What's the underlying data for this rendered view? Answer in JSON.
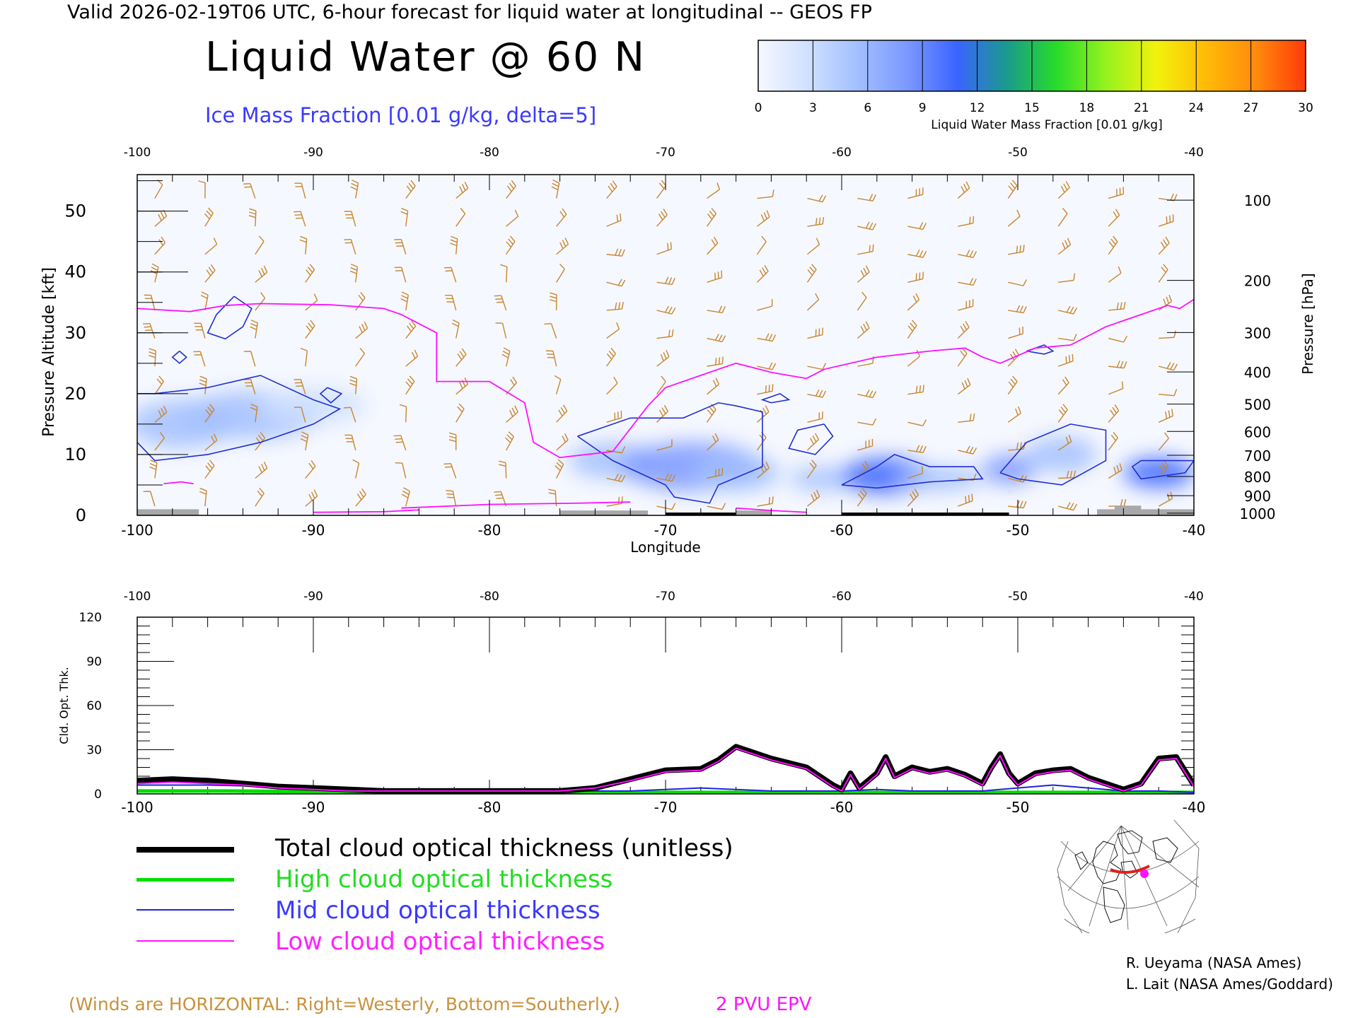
{
  "title": "Valid 2026-02-19T06 UTC, 6-hour forecast for liquid water at longitudinal -- GEOS FP",
  "heading": "Liquid Water @ 60 N",
  "subheading": "Ice Mass Fraction [0.01 g/kg, delta=5]",
  "colorbar": {
    "label": "Liquid Water Mass Fraction [0.01 g/kg]",
    "ticks": [
      "0",
      "3",
      "6",
      "9",
      "12",
      "15",
      "18",
      "21",
      "24",
      "27",
      "30"
    ],
    "colors": [
      "#f6f8ff",
      "#cfe0ff",
      "#a2c0ff",
      "#7b98ff",
      "#3a64ff",
      "#1a9a8c",
      "#28dc2a",
      "#96f21e",
      "#f2f20c",
      "#ffbb06",
      "#ff8a0e",
      "#ff3a08"
    ]
  },
  "colors": {
    "wind_barb": "#c8862e",
    "ice_contour": "#1f2fd0",
    "epv": "#ff10ff",
    "terrain": "#a8a8a8"
  },
  "chart_data": [
    {
      "type": "heatmap",
      "x_ticks": [
        "-100",
        "-90",
        "-80",
        "-70",
        "-60",
        "-50",
        "-40"
      ],
      "xlim": [
        -100,
        -40
      ],
      "xlabel": "Longitude",
      "ylabel_left": "Pressure Altitude [kft]",
      "y_left_ticks": [
        "0",
        "10",
        "20",
        "30",
        "40",
        "50"
      ],
      "ylim_kft": [
        0,
        56
      ],
      "ylabel_right": "Pressure [hPa]",
      "y_right_ticks": [
        "100",
        "200",
        "300",
        "400",
        "500",
        "600",
        "700",
        "800",
        "900",
        "1000"
      ],
      "liquid_water_blobs": [
        {
          "lon": -97.5,
          "kft": 15,
          "w": 3,
          "h": 4,
          "v": 4
        },
        {
          "lon": -93.5,
          "kft": 16.5,
          "w": 4,
          "h": 4,
          "v": 3
        },
        {
          "lon": -90,
          "kft": 18,
          "w": 3,
          "h": 3,
          "v": 2
        },
        {
          "lon": -73,
          "kft": 9,
          "w": 2.5,
          "h": 3,
          "v": 4
        },
        {
          "lon": -68.5,
          "kft": 8,
          "w": 4,
          "h": 4,
          "v": 6
        },
        {
          "lon": -66,
          "kft": 7,
          "w": 2.5,
          "h": 3,
          "v": 5
        },
        {
          "lon": -61,
          "kft": 6,
          "w": 2,
          "h": 2,
          "v": 3
        },
        {
          "lon": -57.5,
          "kft": 6.5,
          "w": 2.5,
          "h": 3,
          "v": 9
        },
        {
          "lon": -54.5,
          "kft": 6,
          "w": 2.5,
          "h": 2,
          "v": 5
        },
        {
          "lon": -50.5,
          "kft": 7.5,
          "w": 1.5,
          "h": 2.5,
          "v": 7
        },
        {
          "lon": -47.5,
          "kft": 10,
          "w": 2,
          "h": 3,
          "v": 5
        },
        {
          "lon": -42,
          "kft": 7,
          "w": 2,
          "h": 2.5,
          "v": 9
        }
      ],
      "ice_contours": [
        [
          [
            -100,
            12
          ],
          [
            -99,
            9
          ],
          [
            -96,
            10
          ],
          [
            -93,
            12
          ],
          [
            -90,
            15
          ],
          [
            -88.5,
            17.5
          ],
          [
            -90,
            19
          ],
          [
            -93,
            23
          ],
          [
            -96,
            21
          ],
          [
            -99,
            20
          ],
          [
            -100,
            20
          ]
        ],
        [
          [
            -94.5,
            36
          ],
          [
            -95.5,
            33
          ],
          [
            -96,
            30
          ],
          [
            -95,
            29
          ],
          [
            -94,
            31
          ],
          [
            -93.5,
            34
          ],
          [
            -94.5,
            36
          ]
        ],
        [
          [
            -97.6,
            27
          ],
          [
            -97.2,
            26
          ],
          [
            -97.6,
            25
          ],
          [
            -98,
            26
          ],
          [
            -97.6,
            27
          ]
        ],
        [
          [
            -89.2,
            21
          ],
          [
            -88.4,
            20
          ],
          [
            -89,
            18.5
          ],
          [
            -89.6,
            20
          ],
          [
            -89.2,
            21
          ]
        ],
        [
          [
            -75,
            13
          ],
          [
            -72,
            16
          ],
          [
            -69,
            16
          ],
          [
            -67,
            18.5
          ],
          [
            -66,
            18
          ],
          [
            -64.5,
            17
          ],
          [
            -64.5,
            8
          ],
          [
            -67,
            5
          ],
          [
            -67.5,
            2
          ],
          [
            -69.5,
            3
          ],
          [
            -70,
            5
          ],
          [
            -73,
            9
          ],
          [
            -75,
            13
          ]
        ],
        [
          [
            -64,
            18.5
          ],
          [
            -63,
            19
          ],
          [
            -63.5,
            20
          ],
          [
            -64.5,
            19
          ],
          [
            -64,
            18.5
          ]
        ],
        [
          [
            -61,
            15
          ],
          [
            -62.5,
            14
          ],
          [
            -63,
            11
          ],
          [
            -61.5,
            10
          ],
          [
            -60.5,
            13
          ],
          [
            -61,
            15
          ]
        ],
        [
          [
            -60,
            5
          ],
          [
            -58,
            8
          ],
          [
            -57,
            10
          ],
          [
            -55,
            8
          ],
          [
            -52.5,
            8
          ],
          [
            -52,
            6
          ],
          [
            -55,
            5.5
          ],
          [
            -58,
            4.5
          ],
          [
            -60,
            5
          ]
        ],
        [
          [
            -51,
            7
          ],
          [
            -49.5,
            12
          ],
          [
            -47,
            15
          ],
          [
            -45,
            14
          ],
          [
            -45,
            9
          ],
          [
            -47.5,
            5
          ],
          [
            -50,
            6
          ],
          [
            -51,
            7
          ]
        ],
        [
          [
            -49.5,
            27
          ],
          [
            -48.5,
            26.5
          ],
          [
            -48,
            27
          ],
          [
            -48.5,
            28
          ],
          [
            -49.5,
            27
          ]
        ],
        [
          [
            -43,
            9
          ],
          [
            -40,
            9
          ],
          [
            -40.5,
            7
          ],
          [
            -43,
            6
          ],
          [
            -43.5,
            8
          ],
          [
            -43,
            9
          ]
        ]
      ],
      "epv_2pvu": [
        [
          -100,
          34
        ],
        [
          -97,
          33.5
        ],
        [
          -95,
          34.5
        ],
        [
          -93,
          34.8
        ],
        [
          -89,
          34.6
        ],
        [
          -86,
          34
        ],
        [
          -85,
          33
        ],
        [
          -83,
          30
        ],
        [
          -83,
          22
        ],
        [
          -80,
          22
        ],
        [
          -78,
          18.5
        ],
        [
          -77.5,
          12
        ],
        [
          -76,
          9.5
        ],
        [
          -73,
          10.5
        ],
        [
          -71,
          18
        ],
        [
          -70,
          21
        ],
        [
          -68,
          23
        ],
        [
          -66,
          25
        ],
        [
          -64,
          23.5
        ],
        [
          -62,
          22.5
        ],
        [
          -61,
          24
        ],
        [
          -58,
          26
        ],
        [
          -55,
          27
        ],
        [
          -53,
          27.5
        ],
        [
          -52,
          26
        ],
        [
          -51,
          25
        ],
        [
          -49,
          27.5
        ],
        [
          -47,
          28
        ],
        [
          -45,
          31
        ],
        [
          -43,
          33
        ],
        [
          -41.5,
          34.5
        ],
        [
          -40.8,
          34
        ],
        [
          -40,
          35.5
        ]
      ],
      "epv_low": [
        [
          [
            -98.5,
            5.2
          ],
          [
            -97.5,
            5.5
          ],
          [
            -96.8,
            5.2
          ]
        ],
        [
          [
            -90,
            0.5
          ],
          [
            -86,
            0.6
          ],
          [
            -84,
            0.9
          ]
        ],
        [
          [
            -85,
            1.2
          ],
          [
            -80,
            1.8
          ],
          [
            -75,
            2
          ],
          [
            -72,
            2.2
          ]
        ],
        [
          [
            -66,
            1.2
          ],
          [
            -64,
            0.8
          ],
          [
            -62,
            0.5
          ]
        ]
      ],
      "terrain": [
        [
          [
            -100,
            0
          ],
          [
            -100,
            1
          ],
          [
            -96.5,
            1
          ],
          [
            -96.5,
            0
          ]
        ],
        [
          [
            -76,
            0
          ],
          [
            -76,
            0.8
          ],
          [
            -71,
            0.8
          ],
          [
            -71,
            0
          ]
        ],
        [
          [
            -66,
            0
          ],
          [
            -66,
            0.8
          ],
          [
            -64,
            0.8
          ],
          [
            -64,
            0
          ]
        ],
        [
          [
            -45.5,
            0
          ],
          [
            -45.5,
            1
          ],
          [
            -44.5,
            1
          ],
          [
            -44.5,
            1.6
          ],
          [
            -43,
            1.6
          ],
          [
            -43,
            1
          ],
          [
            -40,
            1
          ],
          [
            -40,
            0
          ]
        ]
      ]
    },
    {
      "type": "line",
      "x_ticks": [
        "-100",
        "-90",
        "-80",
        "-70",
        "-60",
        "-50",
        "-40"
      ],
      "xlim": [
        -100,
        -40
      ],
      "xlabel": "Longitude",
      "ylabel": "Cld. Opt. Thk.",
      "y_ticks": [
        "0",
        "30",
        "60",
        "90",
        "120"
      ],
      "ylim": [
        0,
        120
      ],
      "series": [
        {
          "name": "Total cloud optical thickness (unitless)",
          "color": "#000000",
          "x": [
            -100,
            -98,
            -96,
            -94,
            -92,
            -90,
            -88,
            -86,
            -84,
            -82,
            -80,
            -78,
            -76,
            -74,
            -72,
            -70,
            -68,
            -67,
            -66,
            -64,
            -62,
            -60.5,
            -60,
            -59.5,
            -59,
            -58,
            -57.5,
            -57,
            -56,
            -55,
            -54,
            -53,
            -52,
            -51.5,
            -51,
            -50.5,
            -50,
            -49,
            -48,
            -47,
            -46,
            -45,
            -44,
            -43,
            -42,
            -41,
            -40
          ],
          "y": [
            9,
            10,
            9,
            7,
            5,
            4,
            3,
            2,
            2,
            2,
            2,
            2,
            2,
            4,
            10,
            16,
            17,
            23,
            32,
            24,
            18,
            6,
            3,
            14,
            4,
            14,
            25,
            12,
            18,
            15,
            17,
            13,
            7,
            18,
            27,
            14,
            7,
            14,
            16,
            17,
            11,
            7,
            3,
            7,
            24,
            25,
            6
          ]
        },
        {
          "name": "High cloud optical thickness",
          "color": "#00dd00",
          "x": [
            -100,
            -95,
            -90,
            -80,
            -70,
            -60,
            -50,
            -40
          ],
          "y": [
            2,
            2,
            1.5,
            1,
            1,
            1,
            1,
            1
          ]
        },
        {
          "name": "Mid cloud optical thickness",
          "color": "#2222dd",
          "x": [
            -100,
            -96,
            -92,
            -88,
            -84,
            -80,
            -76,
            -72,
            -70,
            -68,
            -66,
            -64,
            -62,
            -60,
            -58,
            -56,
            -54,
            -52,
            -50,
            -48,
            -46,
            -44,
            -42,
            -40
          ],
          "y": [
            6,
            6,
            5,
            3,
            2,
            2,
            2,
            2,
            3,
            4,
            3,
            2,
            2,
            2,
            3,
            2,
            2,
            2,
            4,
            6,
            4,
            2,
            2,
            1
          ]
        },
        {
          "name": "Low cloud optical thickness",
          "color": "#ff10ff",
          "x": [
            -100,
            -98,
            -96,
            -94,
            -92,
            -90,
            -88,
            -86,
            -84,
            -82,
            -80,
            -78,
            -76,
            -74,
            -72,
            -70,
            -68,
            -67,
            -66,
            -64,
            -62,
            -60.5,
            -60,
            -59.5,
            -59,
            -58,
            -57.5,
            -57,
            -56,
            -55,
            -54,
            -53,
            -52,
            -51.5,
            -51,
            -50.5,
            -50,
            -49,
            -48,
            -47,
            -46,
            -45,
            -44,
            -43,
            -42,
            -41,
            -40
          ],
          "y": [
            7,
            8,
            7,
            6,
            4,
            3,
            2,
            2,
            2,
            2,
            2,
            2,
            2,
            4,
            9,
            15,
            16,
            22,
            31,
            23,
            17,
            5,
            2,
            13,
            3,
            13,
            24,
            11,
            17,
            14,
            16,
            12,
            6,
            17,
            26,
            13,
            6,
            13,
            15,
            16,
            10,
            6,
            2,
            6,
            23,
            24,
            5
          ]
        }
      ]
    }
  ],
  "legend": [
    {
      "label": "Total cloud optical thickness (unitless)",
      "color": "#000000",
      "text_color": "#000000",
      "width": 8
    },
    {
      "label": "High cloud optical thickness",
      "color": "#00dd00",
      "text_color": "#22dd22",
      "width": 5
    },
    {
      "label": "Mid cloud optical thickness",
      "color": "#2222dd",
      "text_color": "#3a3aff",
      "width": 2
    },
    {
      "label": "Low cloud optical thickness",
      "color": "#ff10ff",
      "text_color": "#ff20ff",
      "width": 2
    }
  ],
  "credits": [
    "R. Ueyama (NASA Ames)",
    "L. Lait (NASA Ames/Goddard)"
  ],
  "wind_note": "(Winds are HORIZONTAL: Right=Westerly, Bottom=Southerly.)",
  "epv_note": "2 PVU EPV"
}
